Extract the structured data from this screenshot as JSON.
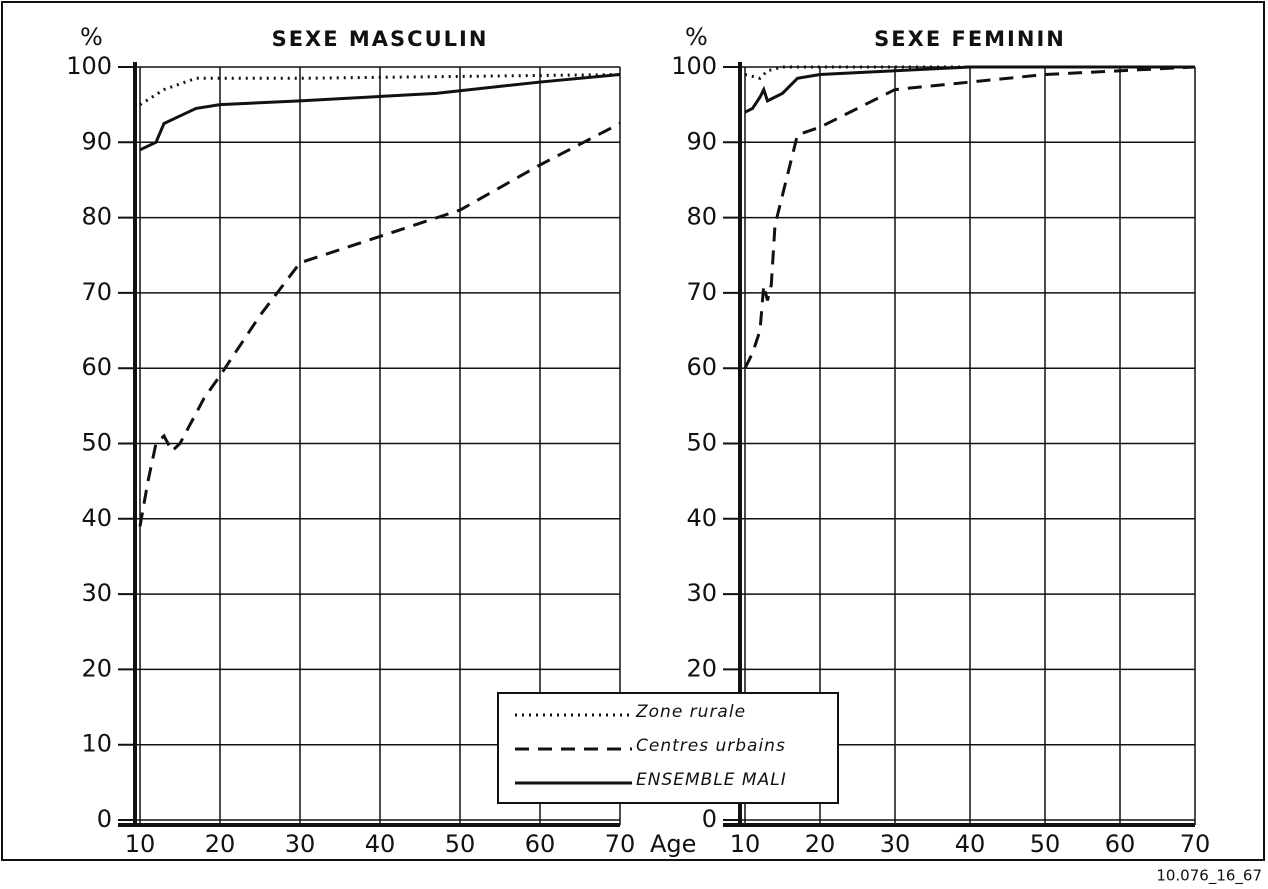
{
  "chart_data": [
    {
      "type": "line",
      "title": "SEXE MASCULIN",
      "ylabel": "%",
      "xlabel": "Age",
      "xlim": [
        10,
        70
      ],
      "xticks": [
        10,
        20,
        30,
        40,
        50,
        60,
        70
      ],
      "ylim": [
        0,
        100
      ],
      "yticks": [
        0,
        10,
        20,
        30,
        40,
        50,
        60,
        70,
        80,
        90,
        100
      ],
      "grid": true,
      "series": [
        {
          "name": "Zone rurale",
          "color": "#111111",
          "style": "dotted",
          "x": [
            10,
            13,
            17,
            20,
            30,
            70
          ],
          "values": [
            95,
            97,
            98.5,
            98.5,
            98.5,
            99
          ]
        },
        {
          "name": "Centres urbains",
          "color": "#111111",
          "style": "dashed",
          "x": [
            10,
            11,
            12,
            13,
            14,
            15,
            18,
            20,
            25,
            30,
            40,
            50,
            60,
            70
          ],
          "values": [
            39,
            45,
            50,
            51,
            49,
            50,
            56,
            59,
            67,
            74,
            77.5,
            81,
            87,
            92.5
          ]
        },
        {
          "name": "ENSEMBLE MALI",
          "color": "#111111",
          "style": "solid",
          "x": [
            10,
            12,
            13,
            15,
            17,
            20,
            30,
            47,
            60,
            70
          ],
          "values": [
            89,
            90,
            92.5,
            93.5,
            94.5,
            95,
            95.5,
            96.5,
            98,
            99
          ]
        }
      ]
    },
    {
      "type": "line",
      "title": "SEXE FEMININ",
      "ylabel": "%",
      "xlim": [
        10,
        70
      ],
      "xticks": [
        10,
        20,
        30,
        40,
        50,
        60,
        70
      ],
      "ylim": [
        0,
        100
      ],
      "yticks": [
        0,
        10,
        20,
        30,
        40,
        50,
        60,
        70,
        80,
        90,
        100
      ],
      "grid": true,
      "series": [
        {
          "color": "#111111",
          "style": "dotted",
          "x": [
            10,
            12,
            13,
            15,
            70
          ],
          "values": [
            99,
            98.5,
            99.5,
            100,
            100
          ]
        },
        {
          "color": "#111111",
          "style": "dashed",
          "x": [
            10,
            11,
            12,
            12.5,
            13,
            13.5,
            14,
            15,
            17,
            20,
            30,
            40,
            50,
            70
          ],
          "values": [
            60,
            62,
            65,
            71,
            69,
            71,
            79,
            83,
            91,
            92,
            97,
            98,
            99,
            100
          ]
        },
        {
          "color": "#111111",
          "style": "solid",
          "x": [
            10,
            11,
            12,
            12.5,
            13,
            14,
            15,
            17,
            20,
            30,
            40,
            70
          ],
          "values": [
            94,
            94.5,
            96,
            97,
            95.5,
            96,
            96.5,
            98.5,
            99,
            99.5,
            100,
            100
          ]
        }
      ]
    }
  ],
  "note": "10.076_16_67"
}
